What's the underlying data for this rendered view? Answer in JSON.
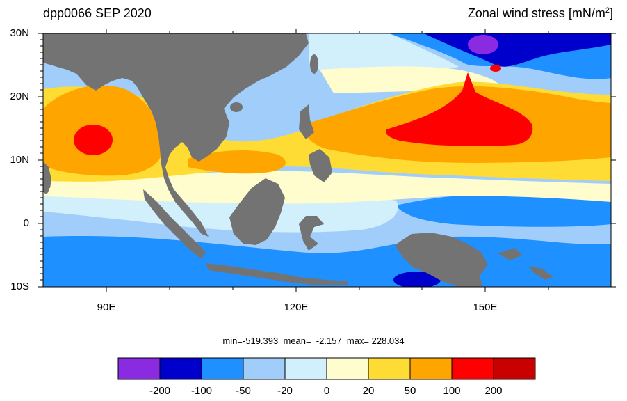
{
  "header": {
    "title_left": "dpp0066 SEP 2020",
    "title_right_prefix": "Zonal wind stress [mN/m",
    "title_right_sup": "2",
    "title_right_suffix": "]"
  },
  "axes": {
    "lat_labels": [
      "30N",
      "20N",
      "10N",
      "0",
      "10S"
    ],
    "lon_labels": [
      "90E",
      "120E",
      "150E"
    ]
  },
  "stats": {
    "text": "min=-519.393  mean=  -2.157  max= 228.034"
  },
  "colorbar": {
    "tick_labels": [
      "-200",
      "-100",
      "-50",
      "-20",
      "0",
      "20",
      "50",
      "100",
      "200"
    ],
    "colors": [
      "#8a2be2",
      "#0000cd",
      "#1e90ff",
      "#a0cdfa",
      "#d2f0fc",
      "#fffccd",
      "#ffdc33",
      "#ffa500",
      "#ff0000",
      "#c80000"
    ]
  },
  "land_color": "#737373"
}
